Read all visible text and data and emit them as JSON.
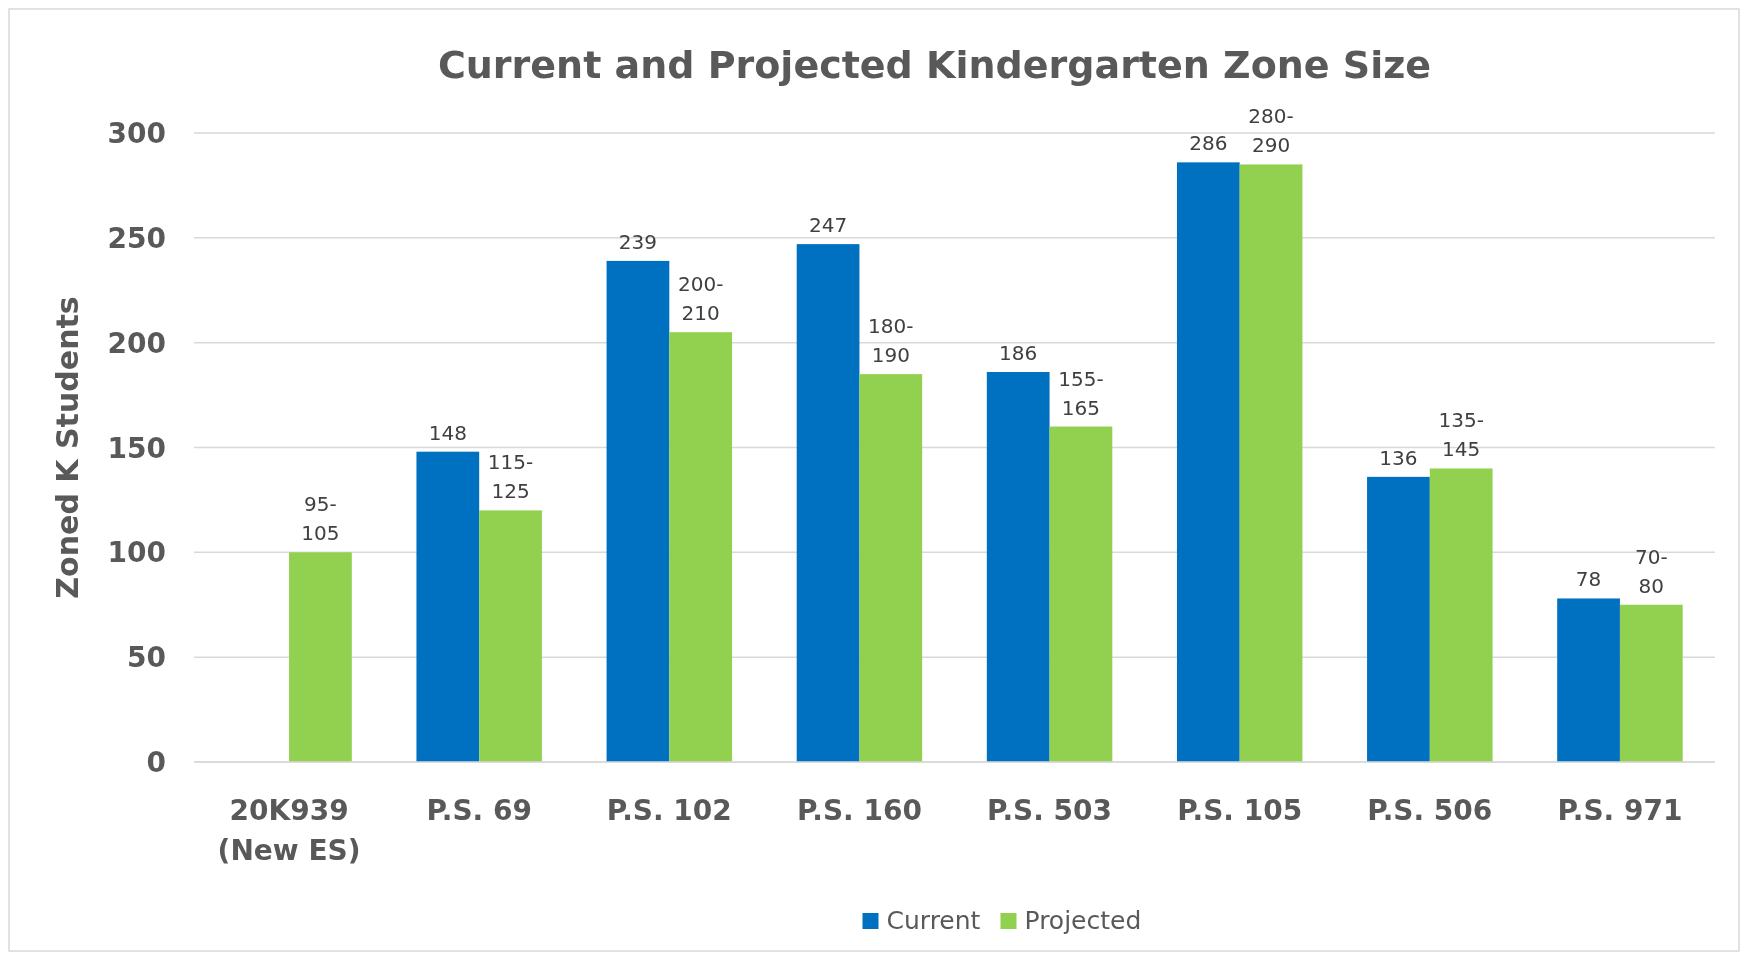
{
  "chart_data": {
    "type": "bar",
    "title": "Current and Projected Kindergarten Zone Size",
    "ylabel": "Zoned K Students",
    "categories": [
      "20K939 (New ES)",
      "P.S. 69",
      "P.S. 102",
      "P.S. 160",
      "P.S. 503",
      "P.S. 105",
      "P.S. 506",
      "P.S. 971"
    ],
    "series": [
      {
        "name": "Current",
        "color": "#0070c0",
        "values": [
          null,
          148,
          239,
          247,
          186,
          286,
          136,
          78
        ],
        "value_labels": [
          null,
          "148",
          "239",
          "247",
          "186",
          "286",
          "136",
          "78"
        ]
      },
      {
        "name": "Projected",
        "color": "#92d050",
        "values": [
          100,
          120,
          205,
          185,
          160,
          285,
          140,
          75
        ],
        "value_labels": [
          "95-105",
          "115-125",
          "200-210",
          "180-190",
          "155-165",
          "280-290",
          "135-145",
          "70-80"
        ]
      }
    ],
    "ylim": [
      0,
      300
    ],
    "yticks": [
      0,
      50,
      100,
      150,
      200,
      250,
      300
    ],
    "grid": "y",
    "legend": "bottom"
  }
}
